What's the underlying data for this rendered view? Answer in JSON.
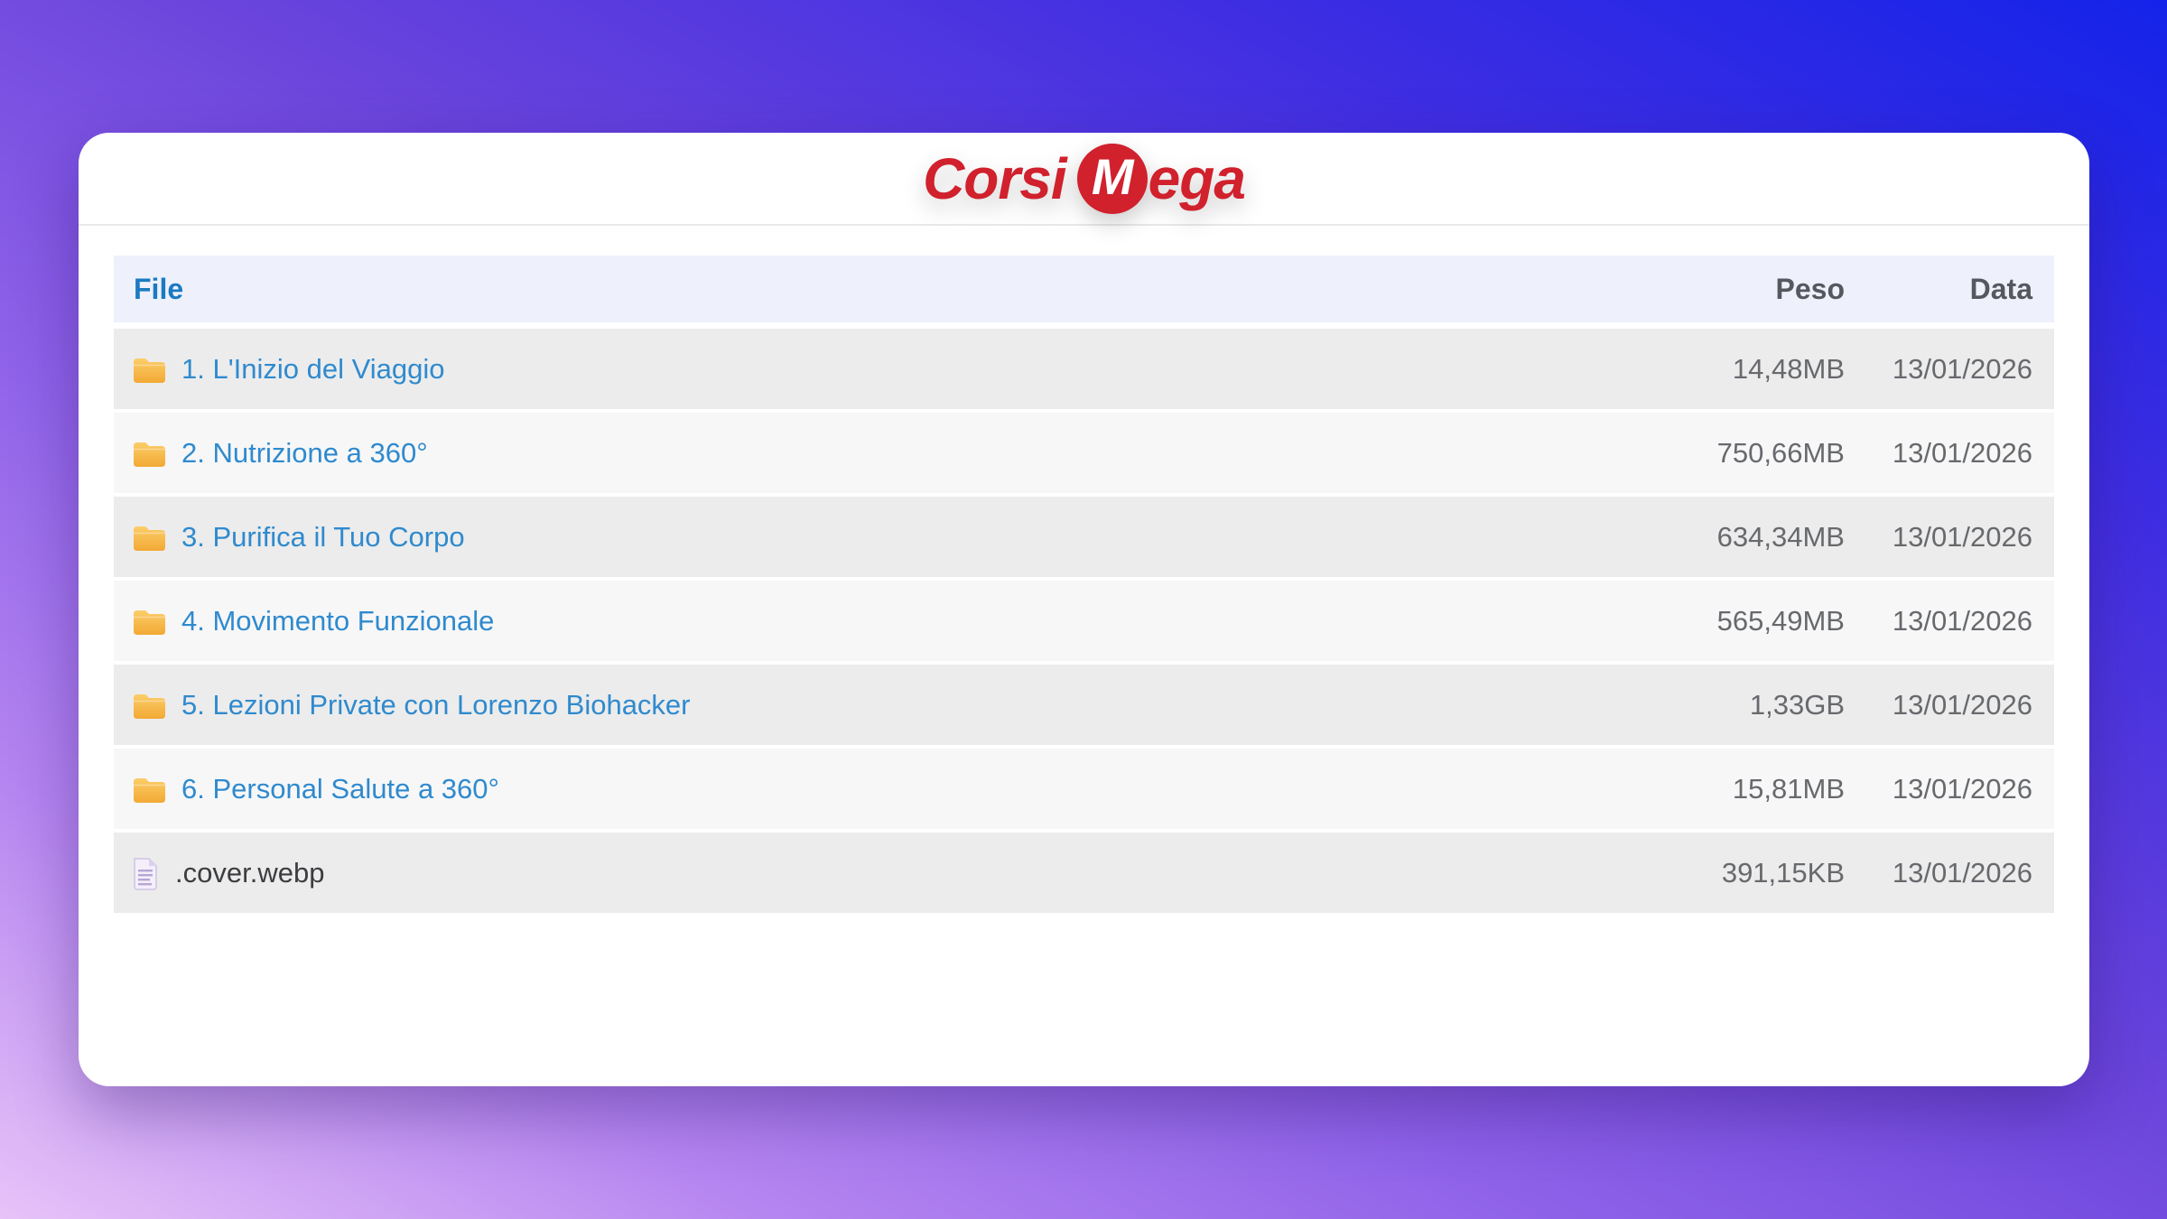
{
  "logo": {
    "part1": "Corsi",
    "circle_letter": "M",
    "part2": "ega",
    "color": "#d0212d"
  },
  "table": {
    "headers": {
      "file": "File",
      "size": "Peso",
      "date": "Data"
    },
    "rows": [
      {
        "type": "folder",
        "name": "1. L'Inizio del Viaggio",
        "size": "14,48MB",
        "date": "13/01/2026"
      },
      {
        "type": "folder",
        "name": "2. Nutrizione a 360°",
        "size": "750,66MB",
        "date": "13/01/2026"
      },
      {
        "type": "folder",
        "name": "3. Purifica il Tuo Corpo",
        "size": "634,34MB",
        "date": "13/01/2026"
      },
      {
        "type": "folder",
        "name": "4. Movimento Funzionale",
        "size": "565,49MB",
        "date": "13/01/2026"
      },
      {
        "type": "folder",
        "name": "5. Lezioni Private con Lorenzo Biohacker",
        "size": "1,33GB",
        "date": "13/01/2026"
      },
      {
        "type": "folder",
        "name": "6. Personal Salute a 360°",
        "size": "15,81MB",
        "date": "13/01/2026"
      },
      {
        "type": "file",
        "name": ".cover.webp",
        "size": "391,15KB",
        "date": "13/01/2026"
      }
    ]
  },
  "colors": {
    "logo_red": "#d0212d",
    "header_file_blue": "#1b7ac1",
    "link_blue": "#2f8ace",
    "header_band": "#eef1fc",
    "row_odd": "#ececec",
    "row_even": "#f7f7f7",
    "size_date_gray": "#67696d",
    "gradient_top_right": "#1423e9",
    "gradient_bottom_left": "#e7c3f8"
  },
  "icons": {
    "folder": "folder-icon",
    "file": "document-icon"
  }
}
